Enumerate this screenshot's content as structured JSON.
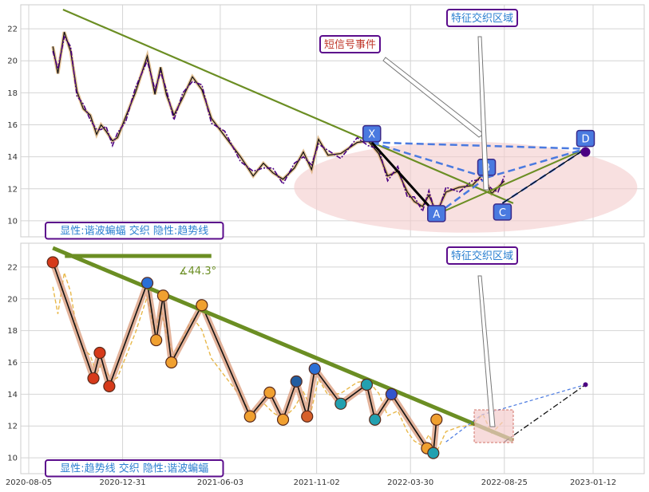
{
  "chart_data": [
    {
      "type": "line",
      "panel": "top",
      "ylim": [
        9,
        23.5
      ],
      "yticks": [
        "10",
        "12",
        "14",
        "16",
        "18",
        "20",
        "22"
      ],
      "grid": true,
      "price_series": [
        [
          "2020-09-12",
          20.9
        ],
        [
          "2020-09-20",
          19.2
        ],
        [
          "2020-09-30",
          21.8
        ],
        [
          "2020-10-10",
          20.6
        ],
        [
          "2020-10-20",
          18.1
        ],
        [
          "2020-10-30",
          17.0
        ],
        [
          "2020-11-10",
          16.6
        ],
        [
          "2020-11-20",
          15.4
        ],
        [
          "2020-11-27",
          16.0
        ],
        [
          "2020-12-05",
          15.6
        ],
        [
          "2020-12-15",
          15.0
        ],
        [
          "2020-12-23",
          15.2
        ],
        [
          "2021-01-05",
          16.5
        ],
        [
          "2021-01-20",
          18.0
        ],
        [
          "2021-02-08",
          20.3
        ],
        [
          "2021-02-20",
          17.9
        ],
        [
          "2021-03-01",
          19.6
        ],
        [
          "2021-03-10",
          17.9
        ],
        [
          "2021-03-22",
          16.6
        ],
        [
          "2021-04-05",
          17.7
        ],
        [
          "2021-04-20",
          19.0
        ],
        [
          "2021-05-05",
          18.2
        ],
        [
          "2021-05-20",
          16.4
        ],
        [
          "2021-06-10",
          15.3
        ],
        [
          "2021-07-05",
          14.0
        ],
        [
          "2021-07-25",
          12.8
        ],
        [
          "2021-08-10",
          13.6
        ],
        [
          "2021-08-25",
          13.0
        ],
        [
          "2021-09-10",
          12.6
        ],
        [
          "2021-09-28",
          13.3
        ],
        [
          "2021-10-12",
          14.3
        ],
        [
          "2021-10-25",
          13.2
        ],
        [
          "2021-11-05",
          15.1
        ],
        [
          "2021-11-20",
          14.1
        ],
        [
          "2021-12-10",
          14.2
        ],
        [
          "2022-01-05",
          14.9
        ],
        [
          "2022-01-22",
          15.0
        ],
        [
          "2022-02-08",
          14.2
        ],
        [
          "2022-02-22",
          12.8
        ],
        [
          "2022-03-10",
          13.1
        ],
        [
          "2022-03-25",
          11.8
        ],
        [
          "2022-04-05",
          11.2
        ],
        [
          "2022-04-18",
          10.9
        ],
        [
          "2022-04-28",
          11.6
        ],
        [
          "2022-05-10",
          10.5
        ],
        [
          "2022-05-25",
          11.8
        ],
        [
          "2022-06-15",
          12.1
        ],
        [
          "2022-07-05",
          12.2
        ],
        [
          "2022-07-22",
          12.9
        ],
        [
          "2022-08-05",
          11.7
        ],
        [
          "2022-08-15",
          12.1
        ],
        [
          "2022-08-25",
          12.5
        ]
      ],
      "trendline": [
        [
          "2020-09-28",
          23.2
        ],
        [
          "2022-09-08",
          11.1
        ]
      ],
      "trendline2": [
        [
          "2022-05-10",
          10.4
        ],
        [
          "2022-12-31",
          14.5
        ]
      ],
      "harmonic_points": [
        {
          "label": "X",
          "date": "2022-01-28",
          "value": 14.9
        },
        {
          "label": "A",
          "date": "2022-05-10",
          "value": 10.4
        },
        {
          "label": "B",
          "date": "2022-07-28",
          "value": 12.7
        },
        {
          "label": "C",
          "date": "2022-08-22",
          "value": 11.1
        },
        {
          "label": "D",
          "date": "2022-12-31",
          "value": 14.5
        }
      ],
      "labels": {
        "short_signal": "短信号事件",
        "intersection": "特征交织区域",
        "legend": "显性:谐波蝙蝠 交织 隐性:趋势线"
      }
    },
    {
      "type": "line",
      "panel": "bottom",
      "ylim": [
        9,
        23.5
      ],
      "yticks": [
        "10",
        "12",
        "14",
        "16",
        "18",
        "20",
        "22"
      ],
      "grid": true,
      "angle_label": "∡44.3°",
      "trendline": [
        [
          "2020-09-12",
          23.2
        ],
        [
          "2022-09-08",
          11.1
        ]
      ],
      "zigzag": [
        [
          "2020-09-12",
          22.3
        ],
        [
          "2020-11-15",
          15.0
        ],
        [
          "2020-11-25",
          16.6
        ],
        [
          "2020-12-10",
          14.5
        ],
        [
          "2021-02-08",
          21.0
        ],
        [
          "2021-02-22",
          17.4
        ],
        [
          "2021-03-05",
          20.2
        ],
        [
          "2021-03-18",
          16.0
        ],
        [
          "2021-05-05",
          19.6
        ],
        [
          "2021-07-20",
          12.6
        ],
        [
          "2021-08-20",
          14.1
        ],
        [
          "2021-09-10",
          12.4
        ],
        [
          "2021-10-01",
          14.8
        ],
        [
          "2021-10-18",
          12.6
        ],
        [
          "2021-10-30",
          15.6
        ],
        [
          "2021-12-10",
          13.4
        ],
        [
          "2022-01-20",
          14.6
        ],
        [
          "2022-02-02",
          12.4
        ],
        [
          "2022-02-28",
          14.0
        ],
        [
          "2022-04-25",
          10.6
        ],
        [
          "2022-05-05",
          10.3
        ],
        [
          "2022-05-10",
          12.4
        ]
      ],
      "forecast": [
        [
          "2022-05-25",
          11.0
        ],
        [
          "2022-07-20",
          12.7
        ],
        [
          "2022-12-31",
          14.6
        ]
      ],
      "labels": {
        "intersection": "特征交织区域",
        "legend": "显性:趋势线 交织 隐性:谐波蝙蝠"
      }
    }
  ],
  "x_axis": {
    "ticks": [
      "2020-08-05",
      "2020-12-31",
      "2021-06-03",
      "2021-11-02",
      "2022-03-30",
      "2022-08-25",
      "2023-01-12"
    ]
  },
  "colors": {
    "price": "#4b0082",
    "trend": "#6b8e23",
    "harmonic_dash": "#4a7ae0",
    "ellipse": "#f4cccc",
    "label_border": "#5b0c8c",
    "label_text_blue": "#2a7fd0",
    "label_text_red": "#c0392b",
    "price_light": "#e8b84a"
  }
}
